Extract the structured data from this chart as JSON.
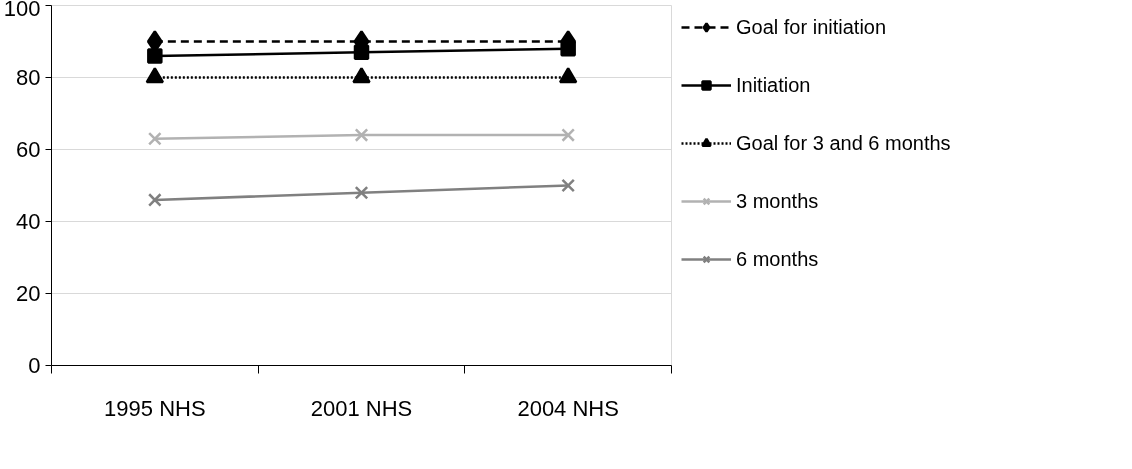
{
  "chart_data": {
    "type": "line",
    "categories": [
      "1995 NHS",
      "2001 NHS",
      "2004 NHS"
    ],
    "series": [
      {
        "name": "Goal for initiation",
        "color": "#000000",
        "values": [
          90,
          90,
          90
        ],
        "marker": "diamond",
        "line_style": "dashed"
      },
      {
        "name": "Initiation",
        "color": "#000000",
        "values": [
          86,
          87,
          88
        ],
        "marker": "square",
        "line_style": "solid"
      },
      {
        "name": "Goal for 3 and 6 months",
        "color": "#000000",
        "values": [
          80,
          80,
          80
        ],
        "marker": "triangle",
        "line_style": "dotted"
      },
      {
        "name": "3 months",
        "color": "#b2b2b2",
        "values": [
          63,
          64,
          64
        ],
        "marker": "cross",
        "line_style": "solid"
      },
      {
        "name": "6 months",
        "color": "#808080",
        "values": [
          46,
          48,
          50
        ],
        "marker": "cross",
        "line_style": "solid"
      }
    ],
    "ylim": [
      0,
      100
    ],
    "yticks": [
      0,
      20,
      40,
      60,
      80,
      100
    ],
    "grid": "y",
    "legend": "right"
  }
}
